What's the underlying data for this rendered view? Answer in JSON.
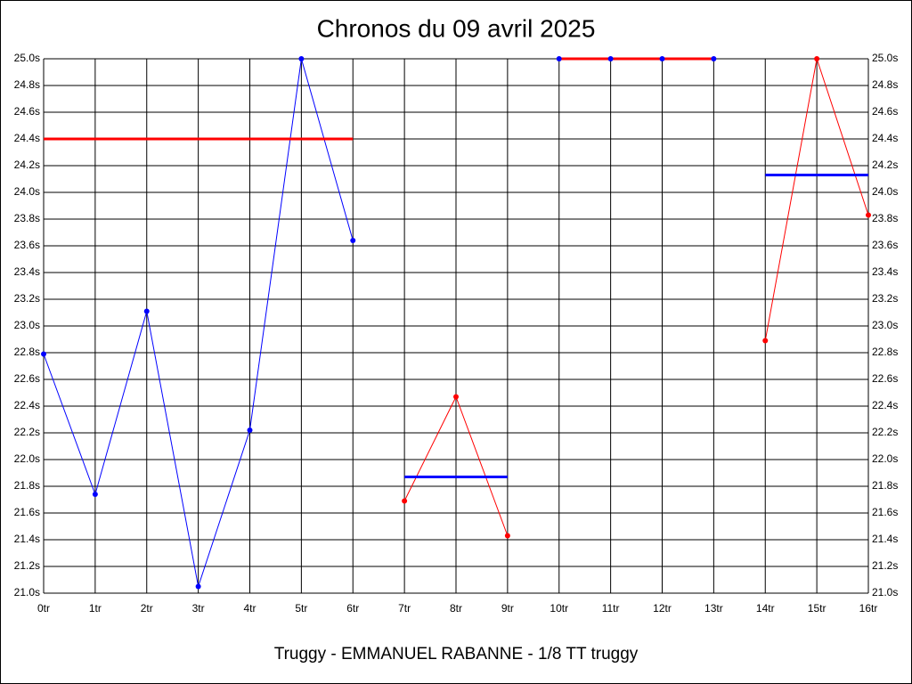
{
  "chart_data": {
    "type": "line",
    "title": "Chronos du 09 avril 2025",
    "footer": "Truggy - EMMANUEL RABANNE - 1/8 TT truggy",
    "categories": [
      "0tr",
      "1tr",
      "2tr",
      "3tr",
      "4tr",
      "5tr",
      "6tr",
      "7tr",
      "8tr",
      "9tr",
      "10tr",
      "11tr",
      "12tr",
      "13tr",
      "14tr",
      "15tr",
      "16tr"
    ],
    "ylim": [
      21.0,
      25.0
    ],
    "yticks": [
      {
        "value": 21.0,
        "label": "21.0s"
      },
      {
        "value": 21.2,
        "label": "21.2s"
      },
      {
        "value": 21.4,
        "label": "21.4s"
      },
      {
        "value": 21.6,
        "label": "21.6s"
      },
      {
        "value": 21.8,
        "label": "21.8s"
      },
      {
        "value": 22.0,
        "label": "22.0s"
      },
      {
        "value": 22.2,
        "label": "22.2s"
      },
      {
        "value": 22.4,
        "label": "22.4s"
      },
      {
        "value": 22.6,
        "label": "22.6s"
      },
      {
        "value": 22.8,
        "label": "22.8s"
      },
      {
        "value": 23.0,
        "label": "23.0s"
      },
      {
        "value": 23.2,
        "label": "23.2s"
      },
      {
        "value": 23.4,
        "label": "23.4s"
      },
      {
        "value": 23.6,
        "label": "23.6s"
      },
      {
        "value": 23.8,
        "label": "23.8s"
      },
      {
        "value": 24.0,
        "label": "24.0s"
      },
      {
        "value": 24.2,
        "label": "24.2s"
      },
      {
        "value": 24.4,
        "label": "24.4s"
      },
      {
        "value": 24.6,
        "label": "24.6s"
      },
      {
        "value": 24.8,
        "label": "24.8s"
      },
      {
        "value": 25.0,
        "label": "25.0s"
      }
    ],
    "grid": true,
    "series": [
      {
        "color": "#0000ff",
        "line_width": 1,
        "markers": true,
        "marker_color": "#0000ff",
        "values": [
          22.79,
          21.74,
          23.11,
          21.05,
          22.22,
          25.0,
          23.64,
          null,
          null,
          null,
          null,
          null,
          null,
          null,
          null,
          null,
          null
        ]
      },
      {
        "color": "#ff0000",
        "line_width": 3,
        "markers": false,
        "values": [
          24.4,
          24.4,
          24.4,
          24.4,
          24.4,
          24.4,
          24.4,
          null,
          null,
          null,
          null,
          null,
          null,
          null,
          null,
          null,
          null
        ]
      },
      {
        "color": "#ff0000",
        "line_width": 1,
        "markers": true,
        "marker_color": "#ff0000",
        "values": [
          null,
          null,
          null,
          null,
          null,
          null,
          null,
          21.69,
          22.47,
          21.43,
          null,
          null,
          null,
          null,
          null,
          null,
          null
        ]
      },
      {
        "color": "#0000ff",
        "line_width": 3,
        "markers": false,
        "values": [
          null,
          null,
          null,
          null,
          null,
          null,
          null,
          21.87,
          21.87,
          21.87,
          null,
          null,
          null,
          null,
          null,
          null,
          null
        ]
      },
      {
        "color": "#ff0000",
        "line_width": 3,
        "markers": true,
        "marker_color": "#0000ff",
        "values": [
          null,
          null,
          null,
          null,
          null,
          null,
          null,
          null,
          null,
          null,
          25.0,
          25.0,
          25.0,
          25.0,
          null,
          null,
          null
        ]
      },
      {
        "color": "#ff0000",
        "line_width": 1,
        "markers": true,
        "marker_color": "#ff0000",
        "values": [
          null,
          null,
          null,
          null,
          null,
          null,
          null,
          null,
          null,
          null,
          null,
          null,
          null,
          null,
          22.89,
          25.0,
          23.83
        ]
      },
      {
        "color": "#0000ff",
        "line_width": 3,
        "markers": false,
        "values": [
          null,
          null,
          null,
          null,
          null,
          null,
          null,
          null,
          null,
          null,
          null,
          null,
          null,
          null,
          24.13,
          24.13,
          24.13
        ]
      }
    ]
  }
}
